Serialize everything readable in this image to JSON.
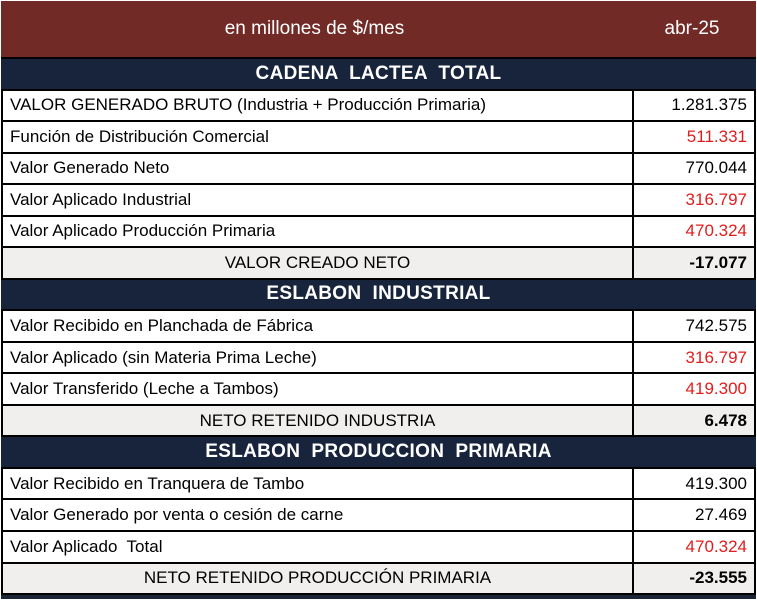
{
  "header": {
    "title": "en millones de $/mes",
    "period": "abr-25"
  },
  "colors": {
    "header_bg": "#712a25",
    "section_bg": "#17243c",
    "summary_bg": "#f0efed",
    "red_value": "#e01d1d",
    "black_value": "#000000",
    "grid_line": "#000000"
  },
  "sections": [
    {
      "title": "CADENA  LACTEA  TOTAL",
      "rows": [
        {
          "label": "VALOR GENERADO BRUTO (Industria + Producción Primaria)",
          "value": "1.281.375",
          "color": "#000000"
        },
        {
          "label": "Función de Distribución Comercial",
          "value": "511.331",
          "color": "#e01d1d"
        },
        {
          "label": "Valor Generado Neto",
          "value": "770.044",
          "color": "#000000"
        },
        {
          "label": "Valor Aplicado Industrial",
          "value": "316.797",
          "color": "#e01d1d"
        },
        {
          "label": "Valor Aplicado Producción Primaria",
          "value": "470.324",
          "color": "#e01d1d"
        }
      ],
      "summary": {
        "label": "VALOR CREADO NETO",
        "value": "-17.077"
      }
    },
    {
      "title": "ESLABON  INDUSTRIAL",
      "rows": [
        {
          "label": "Valor Recibido en Planchada de Fábrica",
          "value": "742.575",
          "color": "#000000"
        },
        {
          "label": "Valor Aplicado (sin Materia Prima Leche)",
          "value": "316.797",
          "color": "#e01d1d"
        },
        {
          "label": "Valor Transferido (Leche a Tambos)",
          "value": "419.300",
          "color": "#e01d1d"
        }
      ],
      "summary": {
        "label": "NETO RETENIDO INDUSTRIA",
        "value": "6.478"
      }
    },
    {
      "title": "ESLABON  PRODUCCION  PRIMARIA",
      "rows": [
        {
          "label": "Valor Recibido en Tranquera de Tambo",
          "value": "419.300",
          "color": "#000000"
        },
        {
          "label": "Valor Generado por venta o cesión de carne",
          "value": "27.469",
          "color": "#000000"
        },
        {
          "label": "Valor Aplicado  Total",
          "value": "470.324",
          "color": "#e01d1d"
        }
      ],
      "summary": {
        "label": "NETO RETENIDO PRODUCCIÓN PRIMARIA",
        "value": "-23.555"
      }
    }
  ]
}
